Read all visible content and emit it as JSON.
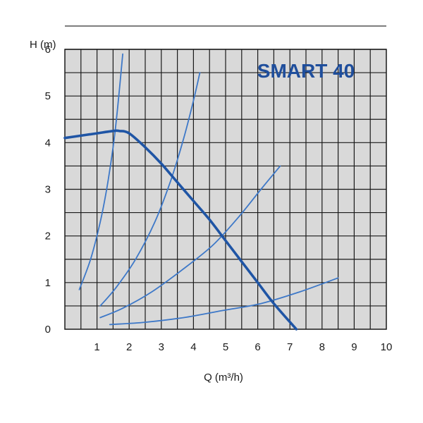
{
  "chart_data": {
    "type": "line",
    "title": "SMART 40",
    "xlabel": "Q (m³/h)",
    "ylabel": "H (m)",
    "xlim": [
      0,
      10
    ],
    "ylim": [
      0,
      6
    ],
    "x_ticks": [
      "1",
      "2",
      "3",
      "4",
      "5",
      "6",
      "7",
      "8",
      "9",
      "10"
    ],
    "y_ticks": [
      "0",
      "1",
      "2",
      "3",
      "4",
      "5",
      "6"
    ],
    "grid": true,
    "colors": {
      "background": "#d9d9d9",
      "grid": "#1a1a1a",
      "pump_curve": "#1f55a5",
      "system_curve": "#3d78c8",
      "title": "#1f4e9c"
    },
    "pump_curve": {
      "points": [
        [
          0,
          4.1
        ],
        [
          0.5,
          4.15
        ],
        [
          1.0,
          4.2
        ],
        [
          1.5,
          4.25
        ],
        [
          1.7,
          4.25
        ],
        [
          2.0,
          4.2
        ],
        [
          2.5,
          3.9
        ],
        [
          3.0,
          3.55
        ],
        [
          3.5,
          3.15
        ],
        [
          4.0,
          2.75
        ],
        [
          4.5,
          2.35
        ],
        [
          5.0,
          1.9
        ],
        [
          5.5,
          1.45
        ],
        [
          6.0,
          1.0
        ],
        [
          6.5,
          0.55
        ],
        [
          7.2,
          0.0
        ]
      ]
    },
    "system_curves": [
      {
        "points": [
          [
            0.45,
            0.85
          ],
          [
            0.8,
            1.5
          ],
          [
            1.1,
            2.3
          ],
          [
            1.3,
            3.0
          ],
          [
            1.5,
            3.9
          ],
          [
            1.65,
            4.8
          ],
          [
            1.8,
            5.9
          ]
        ]
      },
      {
        "points": [
          [
            1.1,
            0.5
          ],
          [
            1.6,
            0.9
          ],
          [
            2.2,
            1.5
          ],
          [
            2.8,
            2.3
          ],
          [
            3.3,
            3.2
          ],
          [
            3.7,
            4.1
          ],
          [
            4.0,
            4.9
          ],
          [
            4.2,
            5.5
          ]
        ]
      },
      {
        "points": [
          [
            1.1,
            0.25
          ],
          [
            1.8,
            0.45
          ],
          [
            2.7,
            0.8
          ],
          [
            3.7,
            1.3
          ],
          [
            4.6,
            1.8
          ],
          [
            5.4,
            2.4
          ],
          [
            6.1,
            3.0
          ],
          [
            6.7,
            3.5
          ]
        ]
      },
      {
        "points": [
          [
            1.4,
            0.1
          ],
          [
            2.5,
            0.15
          ],
          [
            3.7,
            0.25
          ],
          [
            4.9,
            0.4
          ],
          [
            6.1,
            0.55
          ],
          [
            7.3,
            0.8
          ],
          [
            8.5,
            1.1
          ]
        ]
      }
    ]
  }
}
